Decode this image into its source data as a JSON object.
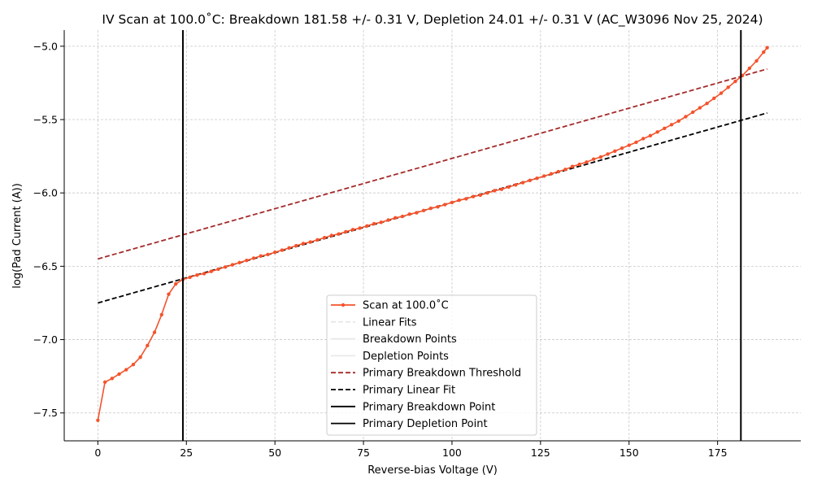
{
  "chart_data": {
    "type": "line",
    "title": "IV Scan at 100.0˚C: Breakdown 181.58 +/- 0.31 V, Depletion 24.01 +/- 0.31 V (AC_W3096 Nov 25, 2024)",
    "xlabel": "Reverse-bias Voltage (V)",
    "ylabel": "log(Pad Current (A))",
    "xlim": [
      -9.5,
      198.5
    ],
    "ylim": [
      -7.69,
      -4.89
    ],
    "xticks": [
      0,
      25,
      50,
      75,
      100,
      125,
      150,
      175
    ],
    "yticks": [
      -7.5,
      -7.0,
      -6.5,
      -6.0,
      -5.5,
      -5.0
    ],
    "xtick_labels": [
      "0",
      "25",
      "50",
      "75",
      "100",
      "125",
      "150",
      "175"
    ],
    "ytick_labels": [
      "−7.5",
      "−7.0",
      "−6.5",
      "−6.0",
      "−5.5",
      "−5.0"
    ],
    "grid": true,
    "legend_position": "lower center",
    "colors": {
      "scan": "#f4532c",
      "primary_breakdown_threshold": "#a52a2a",
      "primary_linear_fit": "#000000",
      "primary_breakdown_point": "#000000",
      "primary_depletion_point": "#000000",
      "faint_entries": "#e8e8e8"
    },
    "series": [
      {
        "name": "Scan at 100.0˚C",
        "x": [
          0,
          2,
          4,
          6,
          8,
          10,
          12,
          14,
          16,
          18,
          20,
          22,
          24,
          26,
          28,
          30,
          32,
          34,
          36,
          38,
          40,
          42,
          44,
          46,
          48,
          50,
          52,
          54,
          56,
          58,
          60,
          62,
          64,
          66,
          68,
          70,
          72,
          74,
          76,
          78,
          80,
          82,
          84,
          86,
          88,
          90,
          92,
          94,
          96,
          98,
          100,
          102,
          104,
          106,
          108,
          110,
          112,
          114,
          116,
          118,
          120,
          122,
          124,
          126,
          128,
          130,
          132,
          134,
          136,
          138,
          140,
          142,
          144,
          146,
          148,
          150,
          152,
          154,
          156,
          158,
          160,
          162,
          164,
          166,
          168,
          170,
          172,
          174,
          176,
          178,
          180,
          182,
          184,
          186,
          188,
          189
        ],
        "y": [
          -7.55,
          -7.29,
          -7.265,
          -7.235,
          -7.205,
          -7.17,
          -7.12,
          -7.04,
          -6.95,
          -6.83,
          -6.69,
          -6.62,
          -6.59,
          -6.575,
          -6.56,
          -6.55,
          -6.535,
          -6.52,
          -6.505,
          -6.49,
          -6.475,
          -6.46,
          -6.445,
          -6.43,
          -6.42,
          -6.405,
          -6.39,
          -6.375,
          -6.36,
          -6.345,
          -6.335,
          -6.32,
          -6.305,
          -6.29,
          -6.28,
          -6.265,
          -6.25,
          -6.24,
          -6.225,
          -6.21,
          -6.2,
          -6.185,
          -6.17,
          -6.16,
          -6.145,
          -6.135,
          -6.12,
          -6.105,
          -6.095,
          -6.08,
          -6.065,
          -6.05,
          -6.04,
          -6.025,
          -6.015,
          -6.0,
          -5.985,
          -5.975,
          -5.96,
          -5.945,
          -5.93,
          -5.915,
          -5.9,
          -5.885,
          -5.87,
          -5.855,
          -5.84,
          -5.82,
          -5.805,
          -5.79,
          -5.77,
          -5.755,
          -5.735,
          -5.715,
          -5.695,
          -5.675,
          -5.655,
          -5.63,
          -5.61,
          -5.585,
          -5.56,
          -5.535,
          -5.51,
          -5.48,
          -5.45,
          -5.42,
          -5.39,
          -5.355,
          -5.32,
          -5.28,
          -5.24,
          -5.2,
          -5.15,
          -5.1,
          -5.04,
          -5.01
        ]
      },
      {
        "name": "Linear Fits",
        "x": [],
        "y": []
      },
      {
        "name": "Breakdown Points",
        "x": [],
        "y": []
      },
      {
        "name": "Depletion Points",
        "x": [],
        "y": []
      },
      {
        "name": "Primary Breakdown Threshold",
        "x": [
          0,
          189
        ],
        "y": [
          -6.45,
          -5.155
        ]
      },
      {
        "name": "Primary Linear Fit",
        "x": [
          0,
          189
        ],
        "y": [
          -6.75,
          -5.455
        ]
      },
      {
        "name": "Primary Breakdown Point",
        "x": [
          181.58,
          181.58
        ],
        "y": [
          -7.69,
          -4.89
        ]
      },
      {
        "name": "Primary Depletion Point",
        "x": [
          24.01,
          24.01
        ],
        "y": [
          -7.69,
          -4.89
        ]
      }
    ],
    "legend": [
      "Scan at 100.0˚C",
      "Linear Fits",
      "Breakdown Points",
      "Depletion Points",
      "Primary Breakdown Threshold",
      "Primary Linear Fit",
      "Primary Breakdown Point",
      "Primary Depletion Point"
    ]
  }
}
